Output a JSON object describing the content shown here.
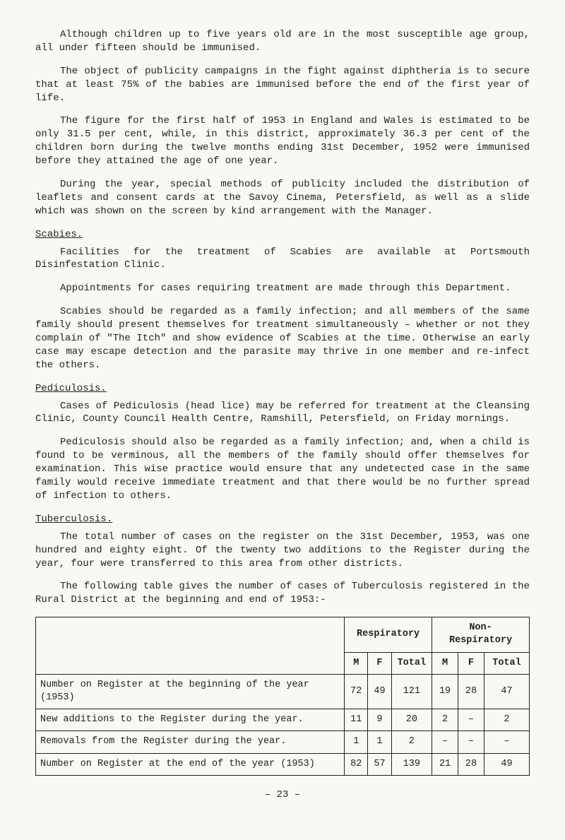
{
  "para1": "Although children up to five years old are in the most susceptible age group, all under fifteen should be immunised.",
  "para2": "The object of publicity campaigns in the fight against diphtheria is to secure that at least 75% of the babies are immunised before the end of the first year of life.",
  "para3": "The figure for the first half of 1953 in England and Wales is estimated to be only 31.5 per cent, while, in this district, approximately 36.3 per cent of the children born during the twelve months ending 31st December, 1952 were immunised before they attained the age of one year.",
  "para4": "During the year, special methods of publicity included the distribution of leaflets and consent cards at the Savoy Cinema, Petersfield, as well as a slide which was shown on the screen by kind arrangement with the Manager.",
  "scabies_heading": "Scabies.",
  "scabies_p1": "Facilities for the treatment of Scabies are available at Portsmouth Disinfestation Clinic.",
  "scabies_p2": "Appointments for cases requiring treatment are made through this Department.",
  "scabies_p3": "Scabies should be regarded as a family infection; and all members of the same family should present themselves for treatment simultaneously – whether or not they complain of \"The Itch\" and show evidence of Scabies at the time. Otherwise an early case may escape detection and the parasite may thrive in one member and re-infect the others.",
  "pediculosis_heading": "Pediculosis.",
  "pediculosis_p1": "Cases of Pediculosis (head lice) may be referred for treatment at the Cleansing Clinic, County Council Health Centre, Ramshill, Petersfield, on Friday mornings.",
  "pediculosis_p2": "Pediculosis should also be regarded as a family infection; and, when a child is found to be verminous, all the members of the family should offer themselves for examination. This wise practice would ensure that any undetected case in the same family would receive immediate treatment and that there would be no further spread of infection to others.",
  "tb_heading": "Tuberculosis.",
  "tb_p1": "The total number of cases on the register on the 31st December, 1953, was one hundred and eighty eight. Of the twenty two additions to the Register during the year, four were transferred to this area from other districts.",
  "tb_p2": "The following table gives the number of cases of Tuberculosis registered in the Rural District at the beginning and end of 1953:-",
  "table": {
    "group_headers": [
      "Respiratory",
      "Non-Respiratory"
    ],
    "sub_headers": [
      "M",
      "F",
      "Total",
      "M",
      "F",
      "Total"
    ],
    "rows": [
      {
        "label": "Number on Register at the beginning of the year (1953)",
        "cells": [
          "72",
          "49",
          "121",
          "19",
          "28",
          "47"
        ]
      },
      {
        "label": "New additions to the Register during the year.",
        "cells": [
          "11",
          "9",
          "20",
          "2",
          "–",
          "2"
        ]
      },
      {
        "label": "Removals from the Register during the year.",
        "cells": [
          "1",
          "1",
          "2",
          "–",
          "–",
          "–"
        ]
      },
      {
        "label": "Number on Register at the end of the year (1953)",
        "cells": [
          "82",
          "57",
          "139",
          "21",
          "28",
          "49"
        ]
      }
    ]
  },
  "page_number": "– 23 –"
}
